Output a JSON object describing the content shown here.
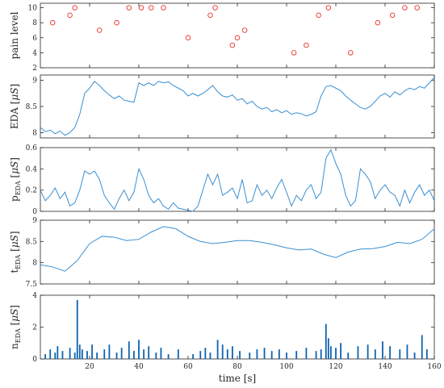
{
  "colors": {
    "line": "#3a8fd1",
    "spike": "#0b63b0",
    "marker": "#e8332a",
    "axis": "#262626"
  },
  "xaxis": {
    "label": "time [s]",
    "ticks": [
      20,
      40,
      60,
      80,
      100,
      120,
      140,
      160
    ],
    "xlim": [
      0,
      160
    ]
  },
  "chart_data": [
    {
      "type": "scatter",
      "ylabel": "pain level",
      "ylim": [
        2,
        10.6
      ],
      "yticks": [
        2,
        4,
        6,
        8,
        10
      ],
      "ytick_labels": [
        "2",
        "4",
        "6",
        "8",
        "10"
      ],
      "marker": "hollow circle",
      "x": [
        5,
        12,
        14,
        24,
        31,
        36,
        41,
        45,
        50,
        60,
        69,
        71,
        78,
        80,
        83,
        103,
        108,
        113,
        117,
        126,
        137,
        143,
        148,
        153
      ],
      "y": [
        8,
        9,
        10,
        7,
        8,
        10,
        10,
        10,
        10,
        6,
        9,
        10,
        5,
        6,
        7,
        4,
        5,
        9,
        10,
        4,
        8,
        9,
        10,
        10
      ]
    },
    {
      "type": "line",
      "ylabel": "EDA [μS]",
      "ylim": [
        7.9,
        9.1
      ],
      "yticks": [
        8,
        8.5,
        9
      ],
      "ytick_labels": [
        "8",
        "8.5",
        "9"
      ],
      "x": [
        0,
        2,
        4,
        6,
        8,
        10,
        12,
        14,
        16,
        18,
        20,
        22,
        24,
        26,
        28,
        30,
        32,
        34,
        36,
        38,
        40,
        42,
        44,
        46,
        48,
        50,
        52,
        54,
        56,
        58,
        60,
        62,
        64,
        66,
        68,
        70,
        72,
        74,
        76,
        78,
        80,
        82,
        84,
        86,
        88,
        90,
        92,
        94,
        96,
        98,
        100,
        102,
        104,
        106,
        108,
        110,
        112,
        114,
        116,
        118,
        120,
        122,
        124,
        126,
        128,
        130,
        132,
        134,
        136,
        138,
        140,
        142,
        144,
        146,
        148,
        150,
        152,
        154,
        156,
        158,
        160
      ],
      "y": [
        8.1,
        8.02,
        8.05,
        7.98,
        8.03,
        7.95,
        8.0,
        8.1,
        8.35,
        8.75,
        8.85,
        8.98,
        8.9,
        8.8,
        8.72,
        8.65,
        8.7,
        8.62,
        8.6,
        8.58,
        8.95,
        8.9,
        8.95,
        8.9,
        8.98,
        8.95,
        8.97,
        8.9,
        8.85,
        8.8,
        8.7,
        8.75,
        8.7,
        8.75,
        8.82,
        8.9,
        8.78,
        8.7,
        8.68,
        8.72,
        8.62,
        8.65,
        8.55,
        8.6,
        8.5,
        8.45,
        8.48,
        8.4,
        8.44,
        8.38,
        8.42,
        8.35,
        8.38,
        8.36,
        8.32,
        8.35,
        8.4,
        8.7,
        8.88,
        8.9,
        8.85,
        8.8,
        8.7,
        8.62,
        8.55,
        8.48,
        8.45,
        8.5,
        8.6,
        8.7,
        8.75,
        8.68,
        8.78,
        8.72,
        8.8,
        8.85,
        8.82,
        8.88,
        8.85,
        8.95,
        9.05
      ]
    },
    {
      "type": "line",
      "ylabel": "p_EDA [μS]",
      "ylim": [
        0,
        0.6
      ],
      "yticks": [
        0,
        0.2,
        0.4,
        0.6
      ],
      "ytick_labels": [
        "0",
        "0.2",
        "0.4",
        "0.6"
      ],
      "x": [
        0,
        2,
        4,
        6,
        8,
        10,
        12,
        14,
        16,
        18,
        20,
        22,
        24,
        26,
        28,
        30,
        32,
        34,
        36,
        38,
        40,
        42,
        44,
        46,
        48,
        50,
        52,
        54,
        56,
        58,
        60,
        62,
        64,
        66,
        68,
        70,
        72,
        74,
        76,
        78,
        80,
        82,
        84,
        86,
        88,
        90,
        92,
        94,
        96,
        98,
        100,
        102,
        104,
        106,
        108,
        110,
        112,
        114,
        116,
        118,
        120,
        122,
        124,
        126,
        128,
        130,
        132,
        134,
        136,
        138,
        140,
        142,
        144,
        146,
        148,
        150,
        152,
        154,
        156,
        158,
        160
      ],
      "y": [
        0.2,
        0.1,
        0.15,
        0.22,
        0.12,
        0.18,
        0.05,
        0.08,
        0.2,
        0.38,
        0.35,
        0.38,
        0.3,
        0.15,
        0.08,
        0.02,
        0.12,
        0.2,
        0.1,
        0.18,
        0.4,
        0.3,
        0.15,
        0.08,
        0.12,
        0.05,
        0.02,
        0.08,
        0.03,
        0.02,
        0.01,
        0.0,
        0.05,
        0.2,
        0.35,
        0.25,
        0.35,
        0.15,
        0.18,
        0.22,
        0.12,
        0.3,
        0.08,
        0.1,
        0.25,
        0.15,
        0.2,
        0.12,
        0.22,
        0.3,
        0.18,
        0.05,
        0.15,
        0.1,
        0.2,
        0.25,
        0.12,
        0.18,
        0.5,
        0.58,
        0.45,
        0.35,
        0.15,
        0.05,
        0.1,
        0.4,
        0.35,
        0.28,
        0.12,
        0.2,
        0.25,
        0.18,
        0.15,
        0.05,
        0.2,
        0.08,
        0.18,
        0.25,
        0.15,
        0.2,
        0.1
      ]
    },
    {
      "type": "line",
      "ylabel": "t_EDA [μS]",
      "ylim": [
        7.5,
        9
      ],
      "yticks": [
        7.5,
        8,
        8.5,
        9
      ],
      "ytick_labels": [
        "7.5",
        "8",
        "8.5",
        "9"
      ],
      "x": [
        0,
        5,
        10,
        15,
        20,
        25,
        30,
        35,
        40,
        45,
        50,
        55,
        60,
        65,
        70,
        75,
        80,
        85,
        90,
        95,
        100,
        105,
        110,
        115,
        120,
        125,
        130,
        135,
        140,
        145,
        150,
        155,
        160
      ],
      "y": [
        7.95,
        7.9,
        7.8,
        8.05,
        8.45,
        8.62,
        8.6,
        8.52,
        8.55,
        8.72,
        8.85,
        8.8,
        8.62,
        8.5,
        8.45,
        8.48,
        8.52,
        8.52,
        8.48,
        8.42,
        8.35,
        8.3,
        8.32,
        8.2,
        8.12,
        8.25,
        8.32,
        8.33,
        8.38,
        8.48,
        8.45,
        8.55,
        8.8
      ]
    },
    {
      "type": "bar",
      "ylabel": "n_EDA [μS]",
      "ylim": [
        0,
        4
      ],
      "yticks": [
        0,
        2,
        4
      ],
      "ytick_labels": [
        "0",
        "2",
        "4"
      ],
      "x": [
        2,
        4,
        6,
        7,
        9,
        12,
        14,
        15,
        16,
        17,
        19,
        21,
        23,
        26,
        28,
        31,
        33,
        36,
        38,
        40,
        42,
        44,
        47,
        49,
        52,
        56,
        62,
        65,
        67,
        69,
        72,
        74,
        76,
        78,
        81,
        85,
        88,
        91,
        94,
        97,
        100,
        104,
        108,
        112,
        114,
        116,
        117,
        118,
        120,
        122,
        125,
        129,
        133,
        136,
        139,
        142,
        146,
        149,
        152,
        155,
        157
      ],
      "y": [
        0.3,
        0.6,
        0.4,
        0.8,
        0.5,
        0.7,
        0.4,
        3.7,
        0.9,
        0.6,
        0.5,
        0.9,
        0.4,
        0.6,
        0.9,
        0.4,
        0.7,
        1.1,
        0.5,
        1.2,
        0.6,
        0.8,
        0.4,
        0.7,
        0.3,
        0.6,
        0.3,
        0.5,
        0.7,
        0.4,
        1.2,
        0.9,
        0.6,
        0.8,
        0.5,
        0.4,
        0.6,
        0.7,
        0.5,
        0.6,
        0.4,
        0.5,
        0.7,
        0.5,
        0.6,
        2.2,
        1.3,
        0.8,
        0.7,
        1.0,
        0.4,
        0.8,
        0.9,
        0.6,
        1.1,
        0.8,
        0.6,
        0.9,
        0.4,
        1.5,
        0.6
      ]
    }
  ]
}
